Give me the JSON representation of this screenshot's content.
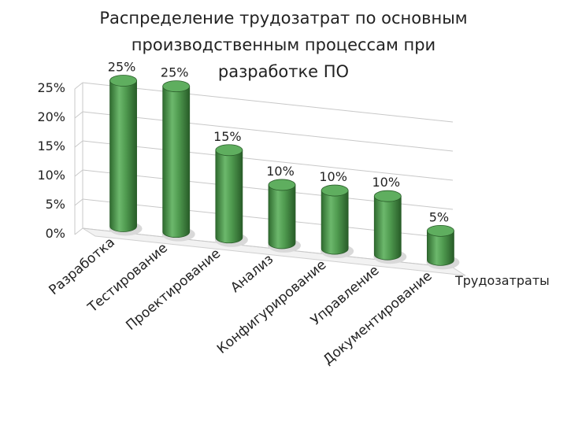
{
  "title_lines": [
    "Распределение трудозатрат по основным",
    "производственным процессам при",
    "разработке ПО"
  ],
  "chart_data": {
    "type": "bar",
    "style": "3d-cylinder",
    "title": "Распределение трудозатрат по основным производственным процессам при разработке ПО",
    "categories": [
      "Разработка",
      "Тестирование",
      "Проектирование",
      "Анализ",
      "Конфигурирование",
      "Управление",
      "Документирование"
    ],
    "series": [
      {
        "name": "Трудозатраты",
        "values": [
          25,
          25,
          15,
          10,
          10,
          10,
          5
        ],
        "color": "#4e9a4e"
      }
    ],
    "data_labels": [
      "25%",
      "25%",
      "15%",
      "10%",
      "10%",
      "10%",
      "5%"
    ],
    "y_ticks": [
      "0%",
      "5%",
      "10%",
      "15%",
      "20%",
      "25%"
    ],
    "ylim": [
      0,
      25
    ],
    "grid": true,
    "legend": "right"
  }
}
